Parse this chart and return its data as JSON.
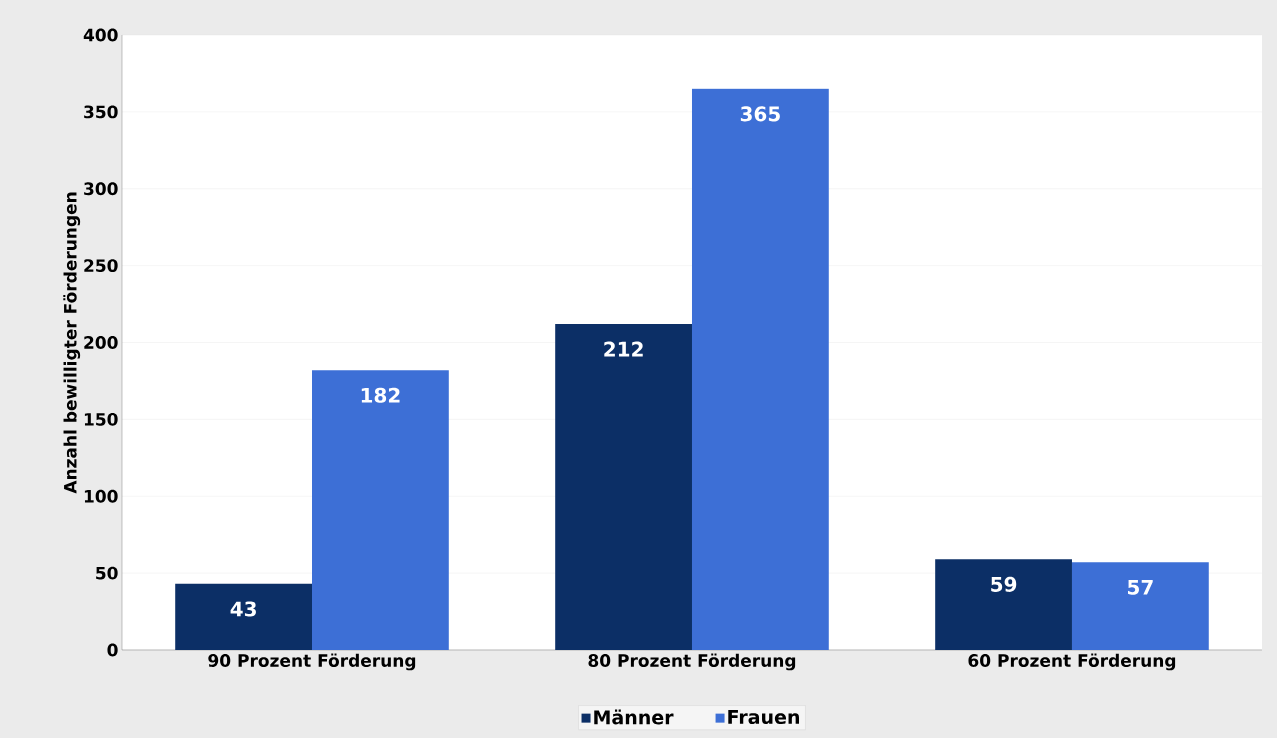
{
  "chart_data": {
    "type": "bar",
    "ylabel": "Anzahl bewilligter Förderungen",
    "categories": [
      "90 Prozent Förderung",
      "80 Prozent Förderung",
      "60 Prozent Förderung"
    ],
    "series": [
      {
        "name": "Männer",
        "color": "#0c2f66",
        "values": [
          43,
          212,
          59
        ]
      },
      {
        "name": "Frauen",
        "color": "#3d6fd6",
        "values": [
          182,
          365,
          57
        ]
      }
    ],
    "ylim": [
      0,
      400
    ],
    "yticks": [
      0,
      50,
      100,
      150,
      200,
      250,
      300,
      350,
      400
    ],
    "grid": "y",
    "legend": "bottom",
    "data_labels": true
  }
}
